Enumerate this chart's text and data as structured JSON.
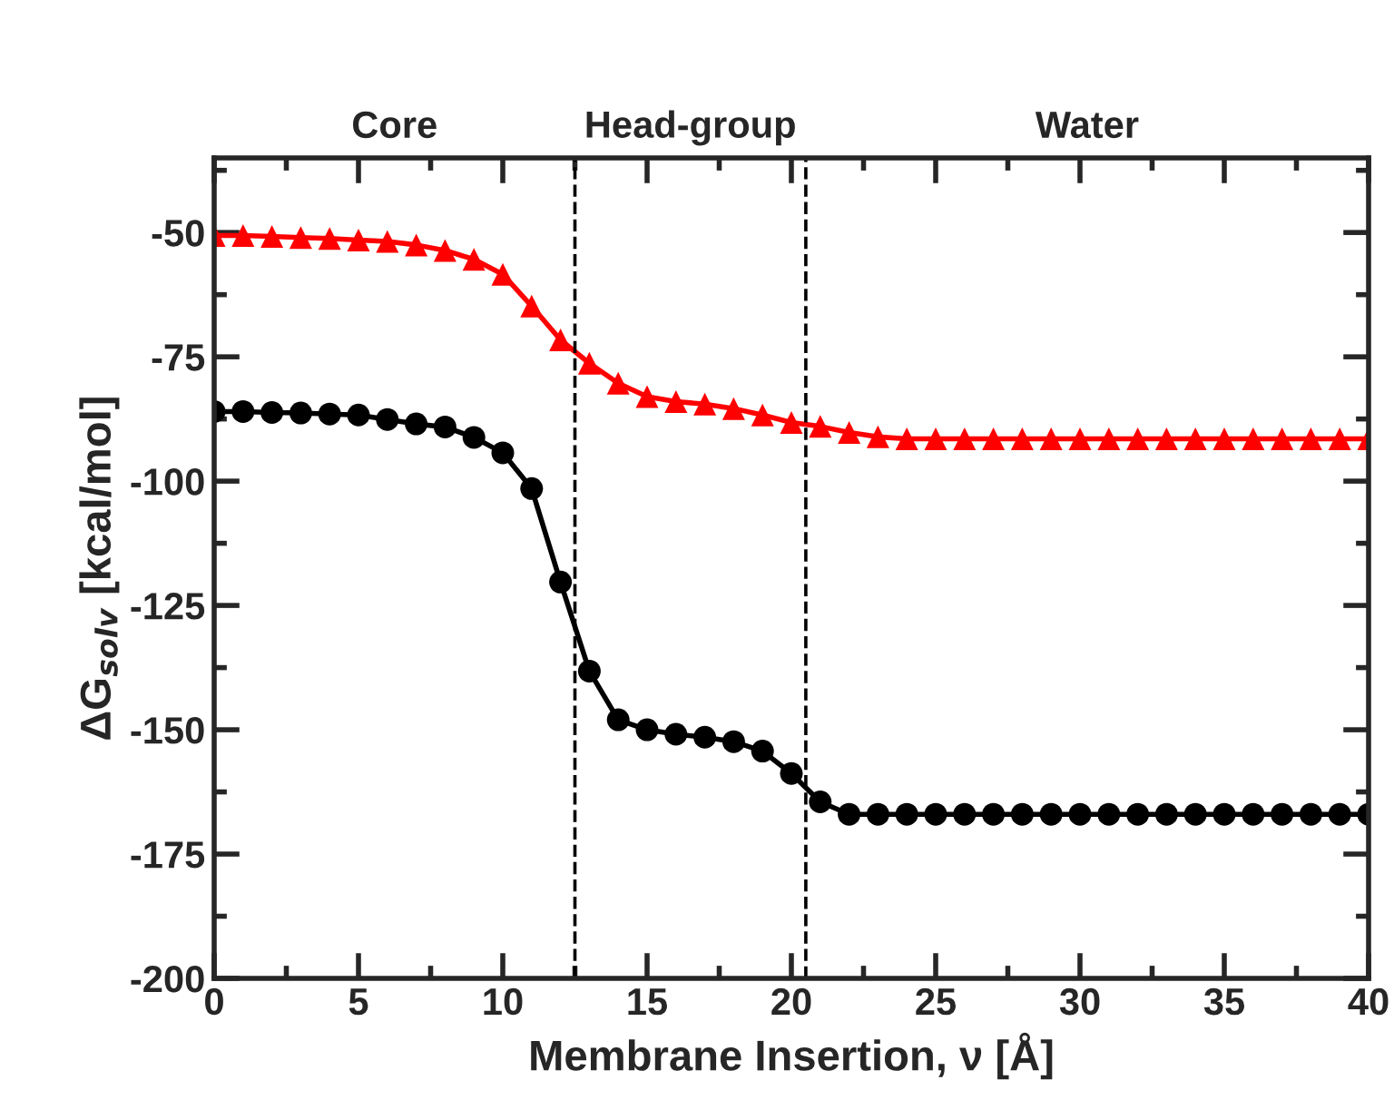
{
  "chart_data": {
    "type": "line",
    "xlabel": "Membrane Insertion, ν [Å]",
    "ylabel": "ΔG$_{solv}$ [kcal/mol]",
    "x": [
      0,
      1,
      2,
      3,
      4,
      5,
      6,
      7,
      8,
      9,
      10,
      11,
      12,
      13,
      14,
      15,
      16,
      17,
      18,
      19,
      20,
      21,
      22,
      23,
      24,
      25,
      26,
      27,
      28,
      29,
      30,
      31,
      32,
      33,
      34,
      35,
      36,
      37,
      38,
      39,
      40
    ],
    "series": [
      {
        "color": "#ff0000",
        "marker": "triangle",
        "values": [
          -50.6,
          -50.6,
          -50.8,
          -51,
          -51.2,
          -51.5,
          -51.8,
          -52.5,
          -53.6,
          -55.4,
          -58.4,
          -64.8,
          -71.6,
          -76.3,
          -80.3,
          -83,
          -84,
          -84.5,
          -85.4,
          -86.7,
          -88.2,
          -89,
          -90.2,
          -91.1,
          -91.5,
          -91.5,
          -91.5,
          -91.5,
          -91.5,
          -91.5,
          -91.5,
          -91.5,
          -91.5,
          -91.5,
          -91.5,
          -91.5,
          -91.5,
          -91.5,
          -91.5,
          -91.5,
          -91.5
        ]
      },
      {
        "color": "#000000",
        "marker": "circle",
        "values": [
          -86,
          -86,
          -86.2,
          -86.3,
          -86.5,
          -86.7,
          -87.6,
          -88.5,
          -89.1,
          -91.2,
          -94.3,
          -101.5,
          -120.3,
          -138.2,
          -148,
          -150,
          -150.9,
          -151.5,
          -152.4,
          -154.3,
          -158.8,
          -164.5,
          -167,
          -167,
          -167,
          -167,
          -167,
          -167,
          -167,
          -167,
          -167,
          -167,
          -167,
          -167,
          -167,
          -167,
          -167,
          -167,
          -167,
          -167,
          -167
        ]
      }
    ],
    "xlim": [
      0,
      40
    ],
    "xticks": [
      0,
      5,
      10,
      15,
      20,
      25,
      30,
      35,
      40
    ],
    "ylim": [
      -200,
      -35
    ],
    "yticks": [
      -200,
      -175,
      -150,
      -125,
      -100,
      -75,
      -50
    ],
    "ref_lines": [
      {
        "axis": "x",
        "value": 12.5,
        "line_style": "dashed",
        "color": "#000000"
      },
      {
        "axis": "x",
        "value": 20.5,
        "line_style": "dashed",
        "color": "#000000"
      }
    ],
    "annotations": [
      "Core",
      "Head-group",
      "Water"
    ],
    "grid": false,
    "legend": false,
    "line_style": "solid"
  }
}
